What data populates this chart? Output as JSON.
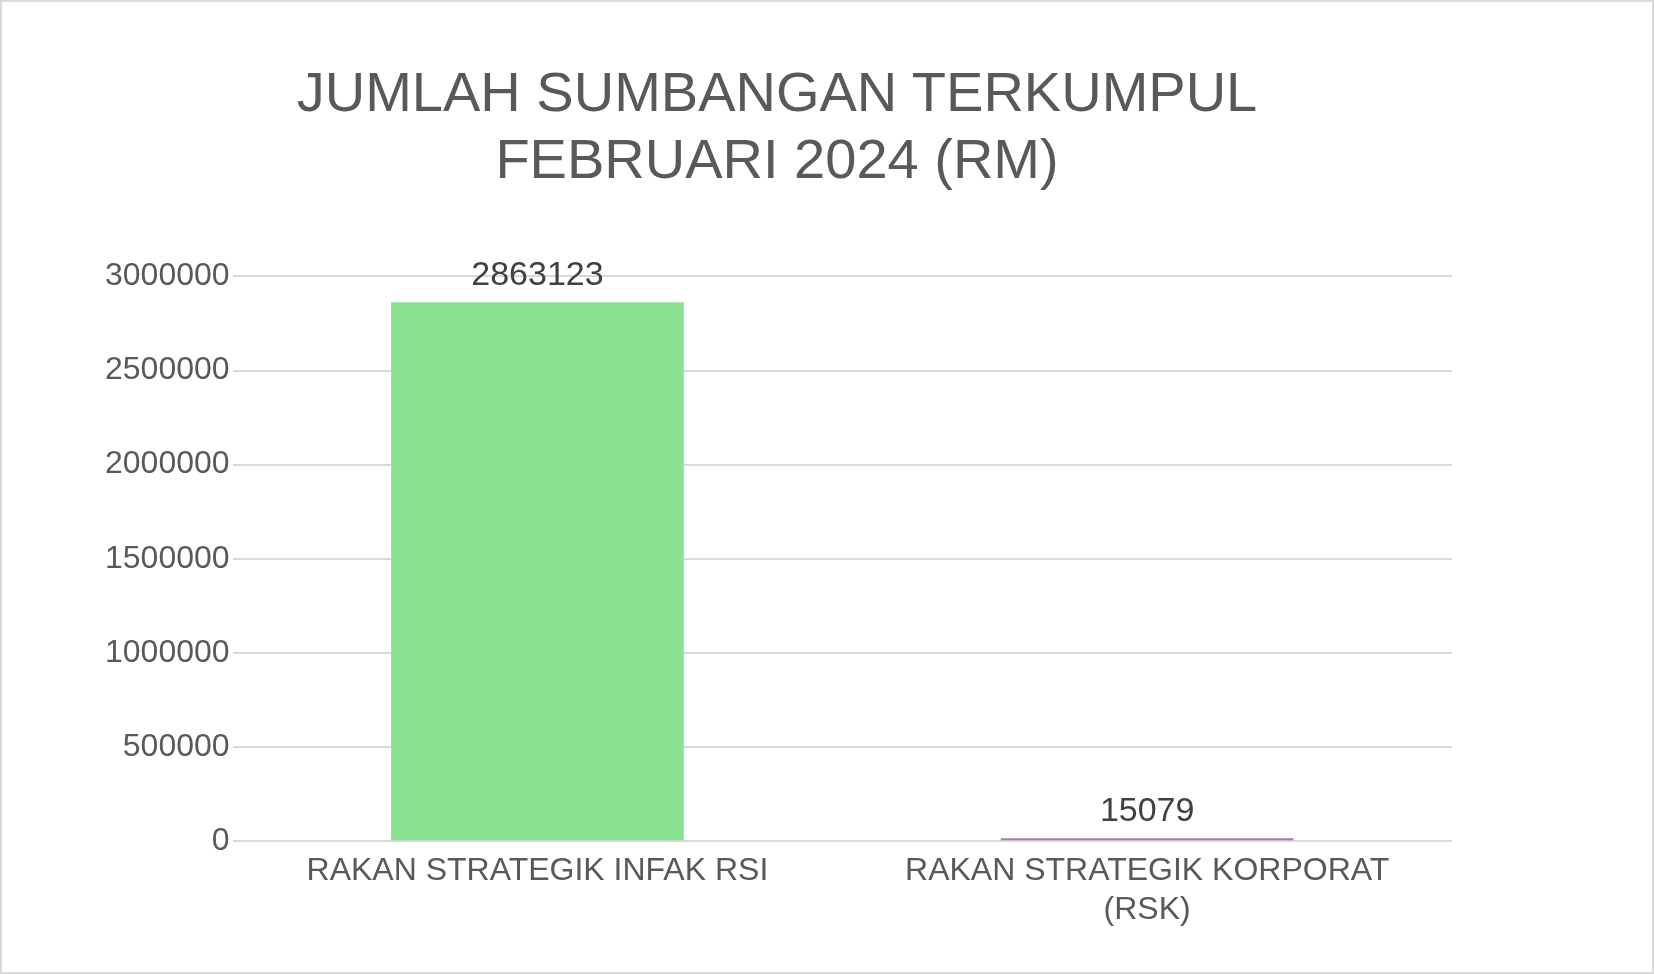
{
  "chart_data": {
    "type": "bar",
    "title": "JUMLAH SUMBANGAN TERKUMPUL FEBRUARI 2024 (RM)",
    "categories": [
      "RAKAN STRATEGIK INFAK RSI",
      "RAKAN STRATEGIK KORPORAT (RSK)"
    ],
    "values": [
      2863123,
      15079
    ],
    "colors": [
      "#88e28f",
      "#ac78a9"
    ],
    "ylim": [
      0,
      3000000
    ],
    "yticks": [
      0,
      500000,
      1000000,
      1500000,
      2000000,
      2500000,
      3000000
    ],
    "grid": "y",
    "data_labels": true,
    "legend": false
  }
}
